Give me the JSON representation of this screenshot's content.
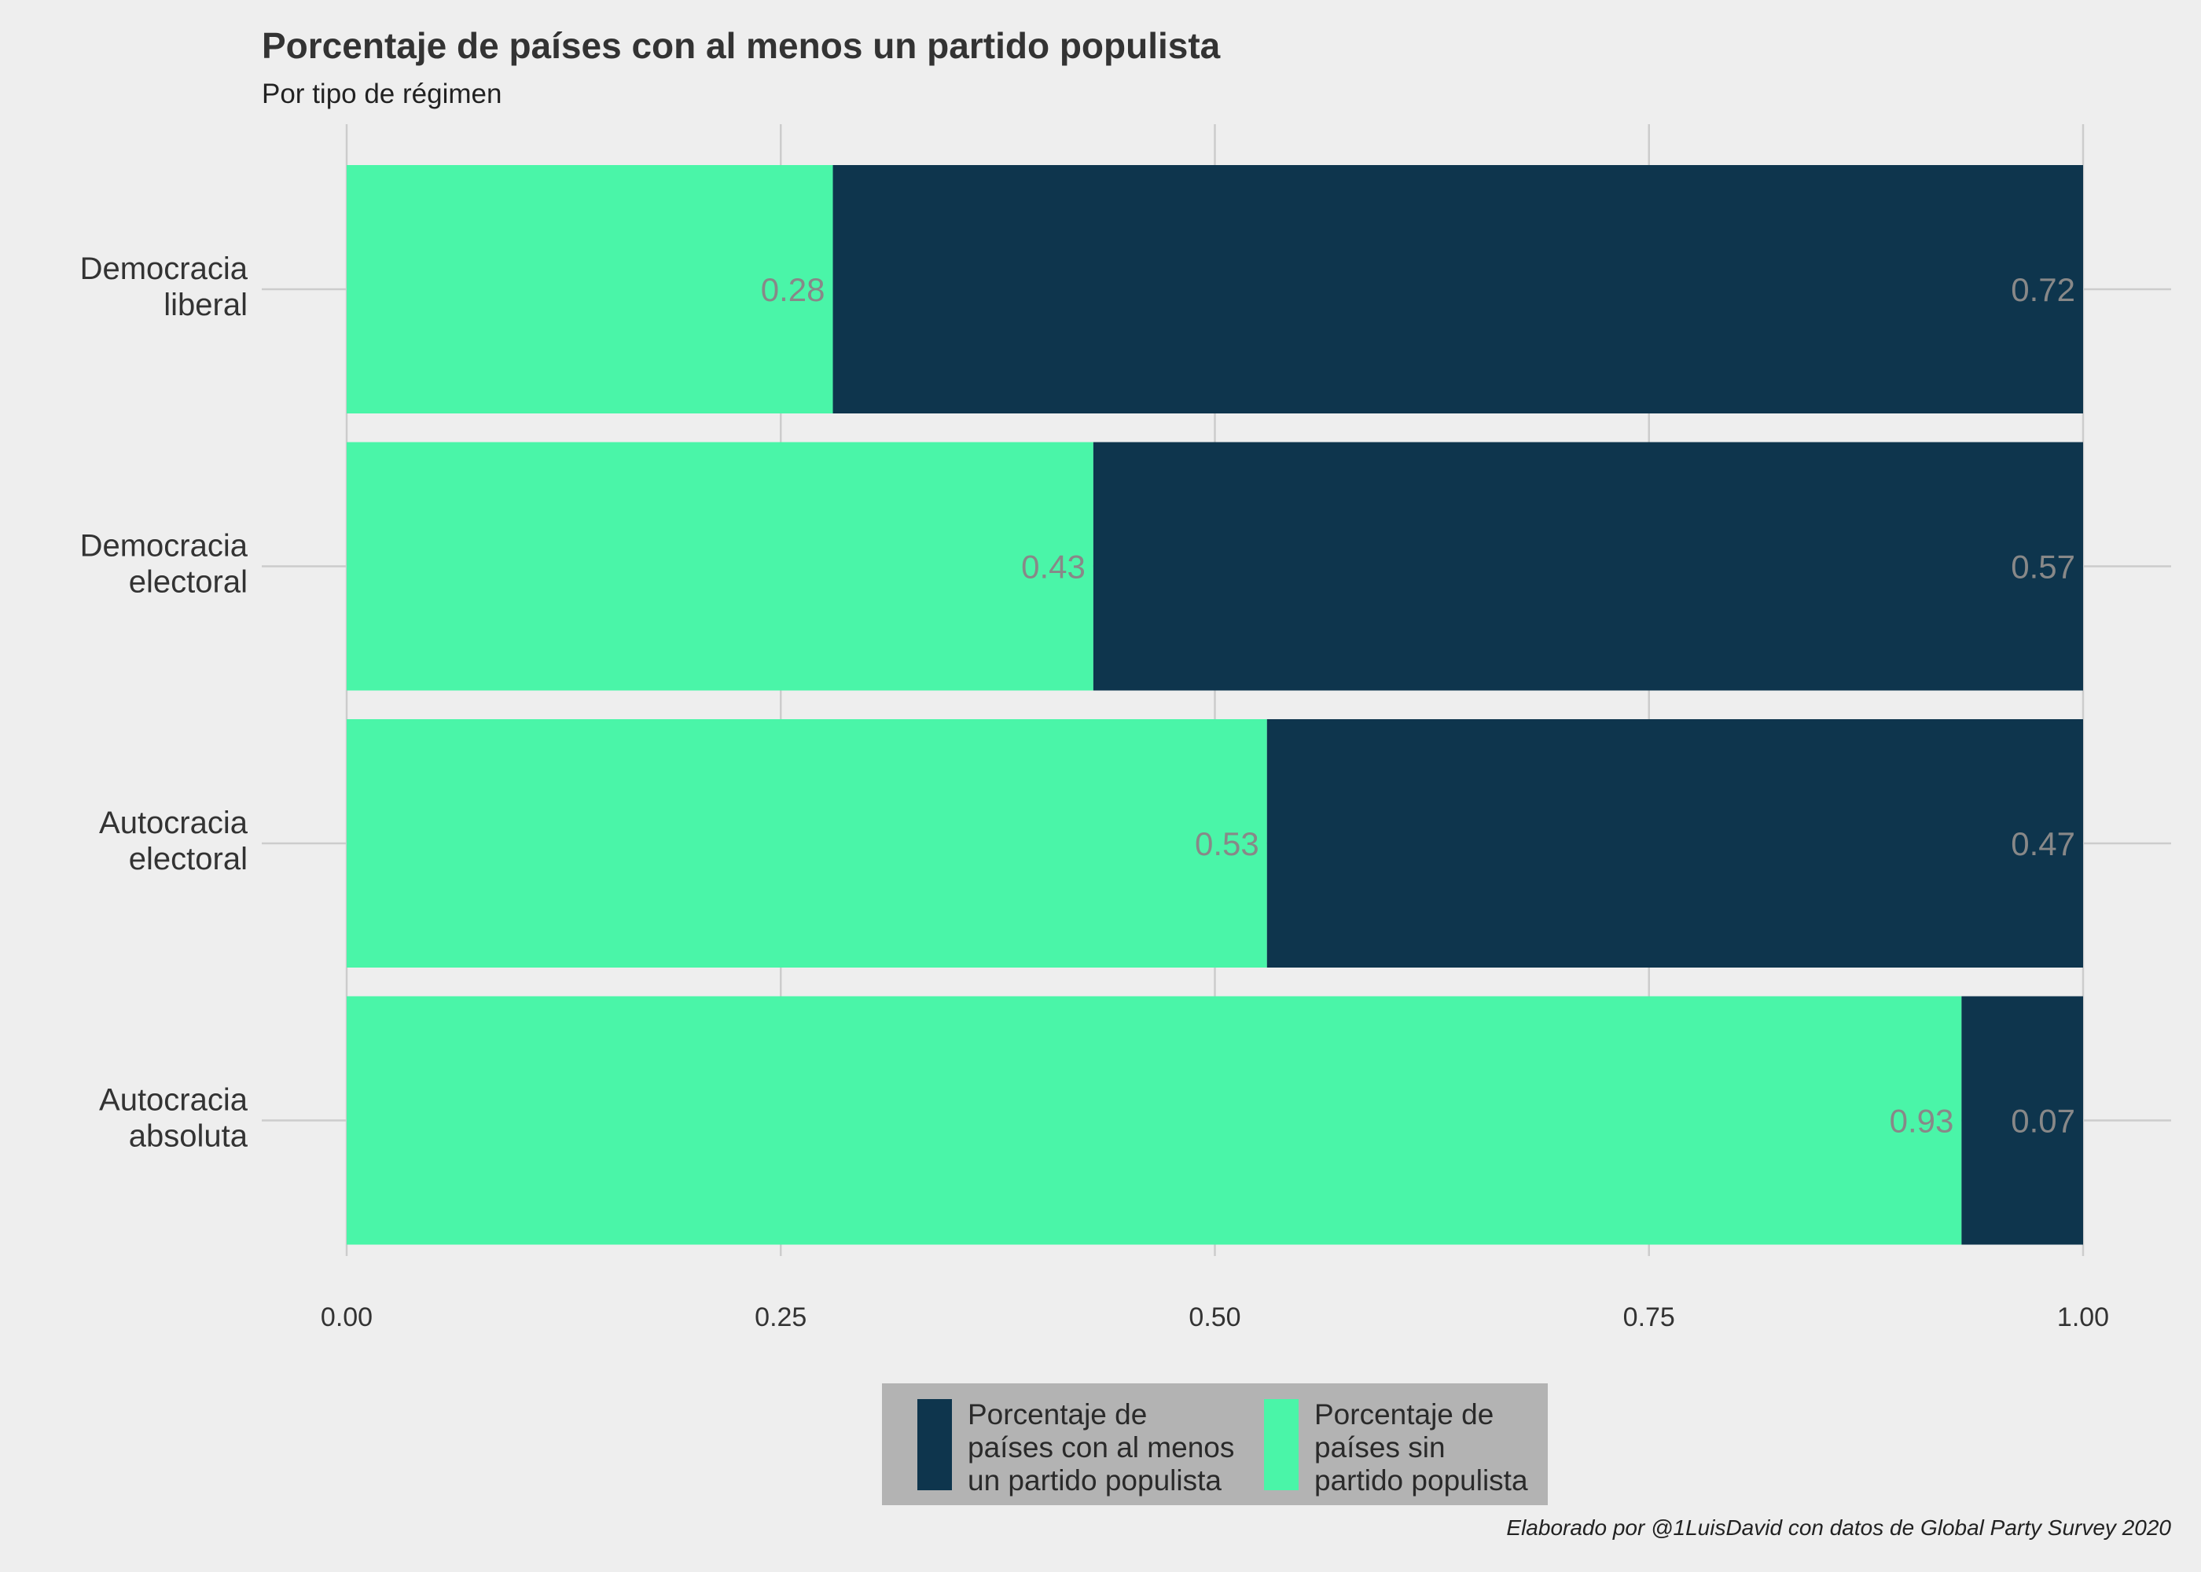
{
  "chart_data": {
    "type": "bar",
    "orientation": "horizontal",
    "stacked": true,
    "title": "Porcentaje de países con al menos un partido populista",
    "subtitle": "Por tipo de régimen",
    "caption": "Elaborado por @1LuisDavid con datos de Global Party Survey 2020",
    "xlabel": "",
    "ylabel": "",
    "xlim": [
      0,
      1
    ],
    "x_ticks": [
      "0.00",
      "0.25",
      "0.50",
      "0.75",
      "1.00"
    ],
    "categories": [
      [
        "Democracia",
        "liberal"
      ],
      [
        "Democracia",
        "electoral"
      ],
      [
        "Autocracia",
        "electoral"
      ],
      [
        "Autocracia",
        "absoluta"
      ]
    ],
    "series": [
      {
        "name": [
          "Porcentaje de",
          "países sin",
          "partido populista"
        ],
        "color": "#4af5a8",
        "values": [
          0.28,
          0.43,
          0.53,
          0.93
        ],
        "labels": [
          "0.28",
          "0.43",
          "0.53",
          "0.93"
        ]
      },
      {
        "name": [
          "Porcentaje de",
          "países con al menos",
          "un partido populista"
        ],
        "color": "#0e354d",
        "values": [
          0.72,
          0.57,
          0.47,
          0.07
        ],
        "labels": [
          "0.72",
          "0.57",
          "0.47",
          "0.07"
        ]
      }
    ],
    "legend_position": "bottom",
    "legend_order": [
      1,
      0
    ],
    "grid": true,
    "colors": {
      "background": "#eeeeee",
      "grid": "#cccccc",
      "legend_bg": "#b3b3b3",
      "value_label": "#888888"
    }
  }
}
